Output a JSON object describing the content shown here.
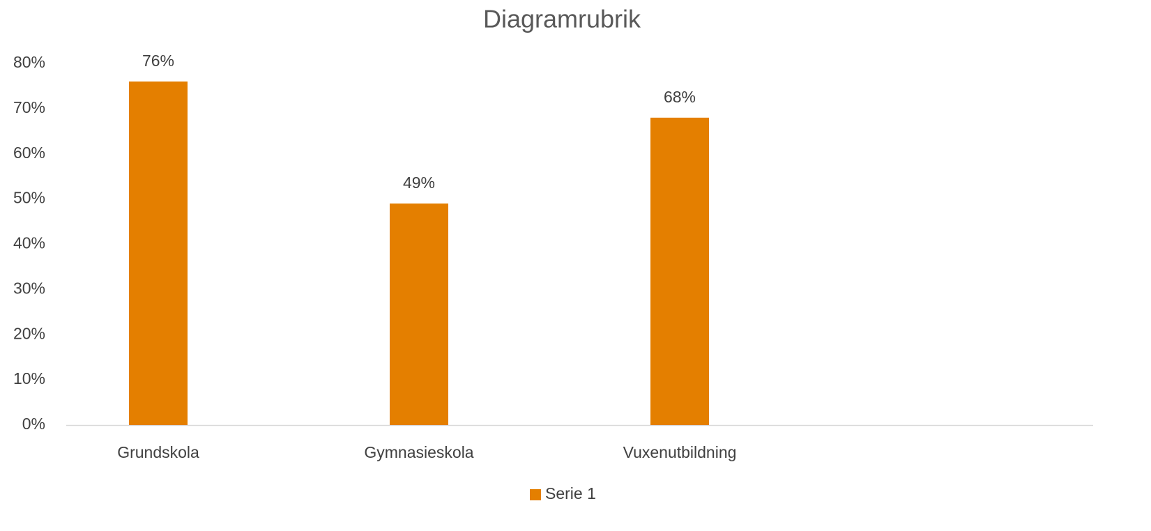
{
  "chart_data": {
    "type": "bar",
    "title": "Diagramrubrik",
    "categories": [
      "Grundskola",
      "Gymnasieskola",
      "Vuxenutbildning",
      null
    ],
    "series": [
      {
        "name": "Serie 1",
        "color": "#e47f00",
        "values": [
          76,
          49,
          68,
          null
        ],
        "value_labels": [
          "76%",
          "49%",
          "68%",
          null
        ]
      }
    ],
    "ylim": [
      0,
      80
    ],
    "yticks": [
      {
        "value": 0,
        "label": "0%"
      },
      {
        "value": 10,
        "label": "10%"
      },
      {
        "value": 20,
        "label": "20%"
      },
      {
        "value": 30,
        "label": "30%"
      },
      {
        "value": 40,
        "label": "40%"
      },
      {
        "value": 50,
        "label": "50%"
      },
      {
        "value": 60,
        "label": "60%"
      },
      {
        "value": 70,
        "label": "70%"
      },
      {
        "value": 80,
        "label": "80%"
      }
    ],
    "grid": false,
    "legend": "bottom"
  }
}
